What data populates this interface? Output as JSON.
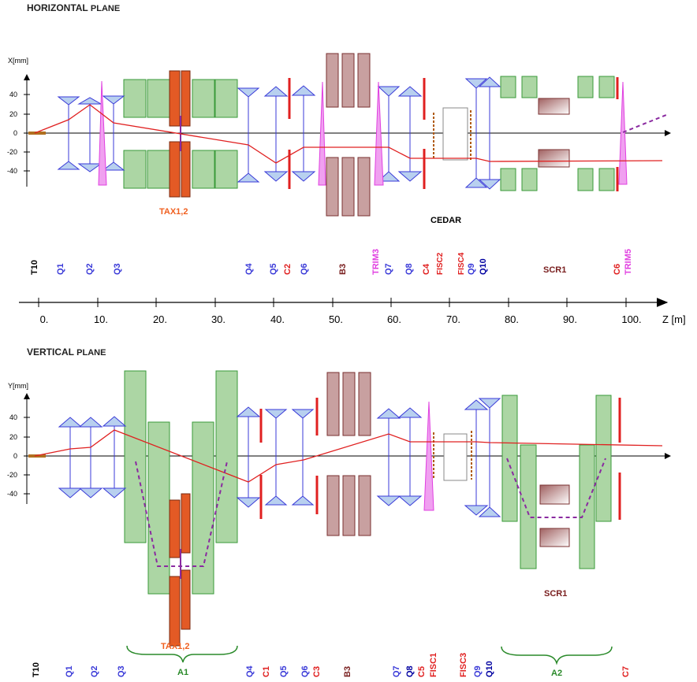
{
  "horizontal": {
    "title_main": "HORIZONTAL",
    "title_suffix": "PLANE",
    "axis_label": "X[mm]",
    "ticks": [
      "40",
      "20",
      "0",
      "-20",
      "-40"
    ],
    "labels": {
      "tax": "TAX1,2",
      "cedar": "CEDAR"
    }
  },
  "element_labels": {
    "t10": "T10",
    "q1": "Q1",
    "q2": "Q2",
    "q3": "Q3",
    "q4": "Q4",
    "q5": "Q5",
    "c2": "C2",
    "q6": "Q6",
    "b3": "B3",
    "trim3": "TRIM3",
    "q7": "Q7",
    "q8": "Q8",
    "c4": "C4",
    "fisc2": "FISC2",
    "fisc4": "FISC4",
    "q9": "Q9",
    "q10": "Q10",
    "scr1": "SCR1",
    "c6": "C6",
    "trim5": "TRIM5"
  },
  "z_axis": {
    "ticks": [
      "0.",
      "10.",
      "20.",
      "30.",
      "40.",
      "50.",
      "60.",
      "70.",
      "80.",
      "90.",
      "100."
    ],
    "label": "Z [m]"
  },
  "vertical": {
    "title_main": "VERTICAL",
    "title_suffix": "PLANE",
    "axis_label": "Y[mm]",
    "ticks": [
      "40",
      "20",
      "0",
      "-20",
      "-40"
    ],
    "labels": {
      "tax": "TAX1,2",
      "scr1": "SCR1",
      "a1": "A1",
      "a2": "A2"
    },
    "bottom_labels": {
      "t10": "T10",
      "q1": "Q1",
      "q2": "Q2",
      "q3": "Q3",
      "q4": "Q4",
      "c1": "C1",
      "q5": "Q5",
      "q6": "Q6",
      "c3": "C3",
      "b3": "B3",
      "q7": "Q7",
      "q8": "Q8",
      "c5": "C5",
      "fisc1": "FISC1",
      "fisc3": "FISC3",
      "q9": "Q9",
      "q10": "Q10",
      "c7": "C7"
    }
  },
  "colors": {
    "quad": "#3a3ad8",
    "quad_fill": "#b8d0ef",
    "collimator": "#e02020",
    "green_fill": "#acd6a4",
    "green_stroke": "#3a9a3a",
    "tax_fill": "#e35a25",
    "bend_fill": "#c8a0a0",
    "bend_stroke": "#7a3030",
    "trim": "#e040e0",
    "trajectory": "#e02020",
    "aperture": "#8a2aa0",
    "fisc": "#b05a10",
    "label_blue": "#3a3ad8",
    "label_red": "#e02020",
    "label_brown": "#7a2020",
    "label_magenta": "#e040e0",
    "label_green": "#2a8a2a",
    "tax_label": "#f06020"
  }
}
